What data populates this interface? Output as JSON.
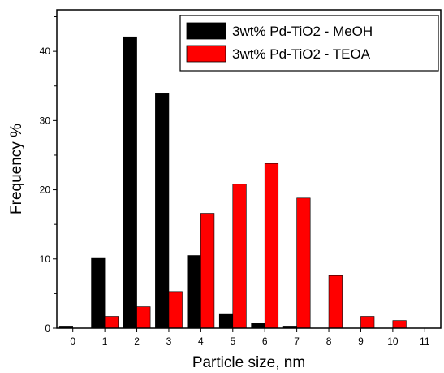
{
  "chart_data": {
    "type": "bar",
    "title": "",
    "xlabel": "Particle size, nm",
    "ylabel": "Frequency %",
    "categories": [
      "0",
      "1",
      "2",
      "3",
      "4",
      "5",
      "6",
      "7",
      "8",
      "9",
      "10",
      "11"
    ],
    "xlim": [
      -0.5,
      11.5
    ],
    "ylim": [
      0,
      46
    ],
    "yticks": [
      "0",
      "10",
      "20",
      "30",
      "40"
    ],
    "legend_position": "top-right",
    "grid": false,
    "series": [
      {
        "name": "3wt% Pd-TiO2 - MeOH",
        "color": "#000000",
        "values": [
          0.3,
          10.2,
          42.1,
          33.9,
          10.5,
          2.1,
          0.7,
          0.3,
          0,
          0,
          0,
          0
        ]
      },
      {
        "name": "3wt% Pd-TiO2 - TEOA",
        "color": "#ff0000",
        "values": [
          0,
          1.7,
          3.1,
          5.3,
          16.6,
          20.8,
          23.8,
          18.8,
          7.6,
          1.7,
          1.1,
          0
        ]
      }
    ]
  }
}
